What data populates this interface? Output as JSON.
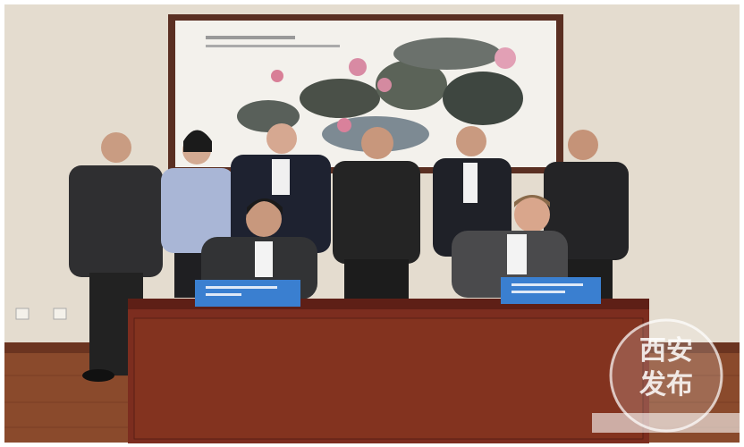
{
  "watermark": {
    "line1": "西安",
    "line2": "发布"
  }
}
